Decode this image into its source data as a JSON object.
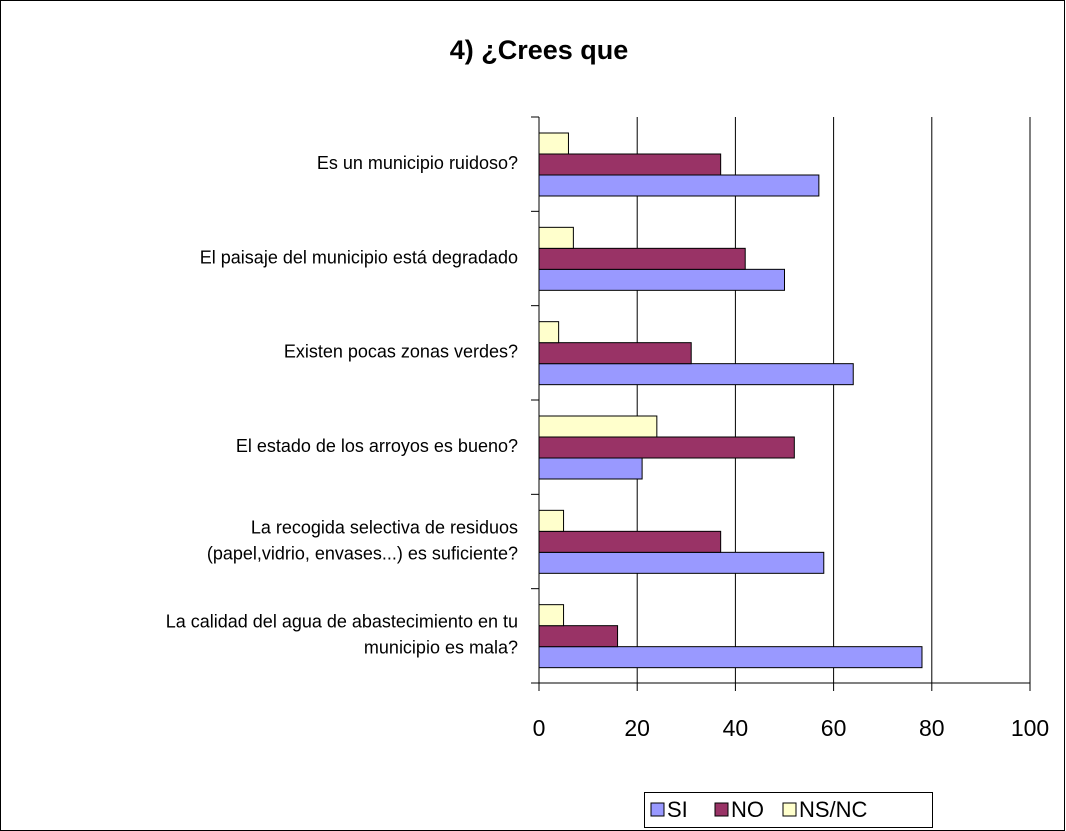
{
  "chart_data": {
    "type": "hbar",
    "title": "4) ¿Crees que",
    "categories": [
      [
        "Es un municipio ruidoso?"
      ],
      [
        "El paisaje del municipio está degradado"
      ],
      [
        "Existen pocas zonas verdes?"
      ],
      [
        "El estado de los arroyos es bueno?"
      ],
      [
        "La recogida selectiva de residuos",
        "(papel,vidrio, envases...) es suficiente?"
      ],
      [
        "La calidad del agua de abastecimiento en tu",
        "municipio es mala?"
      ]
    ],
    "series": [
      {
        "name": "SI",
        "color": "#9999ff",
        "values": [
          57,
          50,
          64,
          21,
          58,
          78
        ]
      },
      {
        "name": "NO",
        "color": "#993366",
        "values": [
          37,
          42,
          31,
          52,
          37,
          16
        ]
      },
      {
        "name": "NS/NC",
        "color": "#ffffcc",
        "values": [
          6,
          7,
          4,
          24,
          5,
          5
        ]
      }
    ],
    "xlim": [
      0,
      100
    ],
    "xticks": [
      0,
      20,
      40,
      60,
      80,
      100
    ],
    "grid": true,
    "legend": "bottom"
  }
}
